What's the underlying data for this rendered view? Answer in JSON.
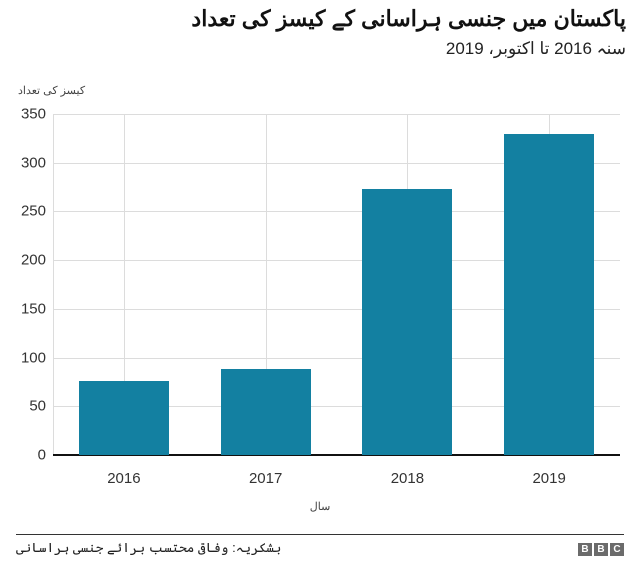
{
  "header": {
    "title": "پاکستان میں جنسی ہراسانی کے کیسز کی تعداد",
    "subtitle": "سنہ 2016 تا اکتوبر، 2019"
  },
  "footer": {
    "source": "بشکریہ: وفاقی محتسب برائے جنسی ہراسانی",
    "logo": [
      "B",
      "B",
      "C"
    ]
  },
  "chart_data": {
    "type": "bar",
    "title": "پاکستان میں جنسی ہراسانی کے کیسز کی تعداد",
    "subtitle": "سنہ 2016 تا اکتوبر، 2019",
    "categories": [
      "2016",
      "2017",
      "2018",
      "2019"
    ],
    "values": [
      76,
      88,
      273,
      330
    ],
    "xlabel": "سال",
    "ylabel": "کیسز کی تعداد",
    "ylim": [
      0,
      350
    ],
    "yticks": [
      "0",
      "50",
      "100",
      "150",
      "200",
      "250",
      "300",
      "350"
    ],
    "grid": true,
    "legend": null,
    "bar_color": "#1380a1",
    "source": "بشکریہ: وفاقی محتسب برائے جنسی ہراسانی"
  }
}
